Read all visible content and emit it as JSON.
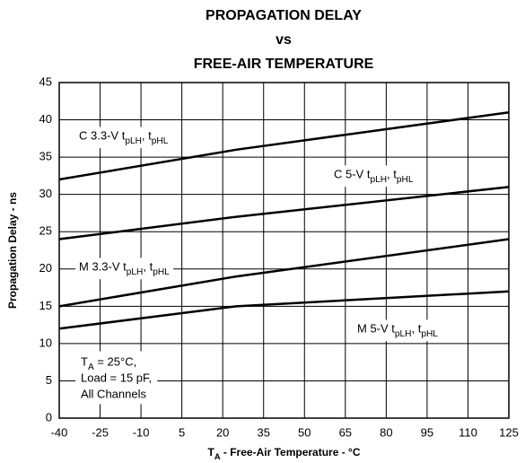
{
  "chart_data": {
    "type": "line",
    "title": [
      "PROPAGATION DELAY",
      "vs",
      "FREE-AIR TEMPERATURE"
    ],
    "x_label": "TA - Free-Air Temperature - °C",
    "y_label": "Propagation Delay - ns",
    "annotation": [
      "TA = 25°C,",
      "Load = 15 pF,",
      "All Channels"
    ],
    "x": [
      -40,
      25,
      125
    ],
    "series": [
      {
        "name": "C 3.3-V tpLH, tpHL",
        "color": "#000000",
        "values": [
          32,
          36,
          41
        ]
      },
      {
        "name": "C 5-V tpLH, tpHL",
        "color": "#000000",
        "values": [
          24,
          27,
          31
        ]
      },
      {
        "name": "M 3.3-V tpLH, tpHL",
        "color": "#000000",
        "values": [
          15,
          19,
          24
        ]
      },
      {
        "name": "M 5-V tpLH, tpHL",
        "color": "#000000",
        "values": [
          12,
          15,
          17
        ]
      }
    ],
    "xlim": [
      -40,
      125
    ],
    "xticks": [
      -40,
      -25,
      -10,
      5,
      20,
      35,
      50,
      65,
      80,
      95,
      110,
      125
    ],
    "ylim": [
      0,
      45
    ],
    "yticks": [
      0,
      5,
      10,
      15,
      20,
      25,
      30,
      35,
      40,
      45
    ],
    "grid": true
  }
}
